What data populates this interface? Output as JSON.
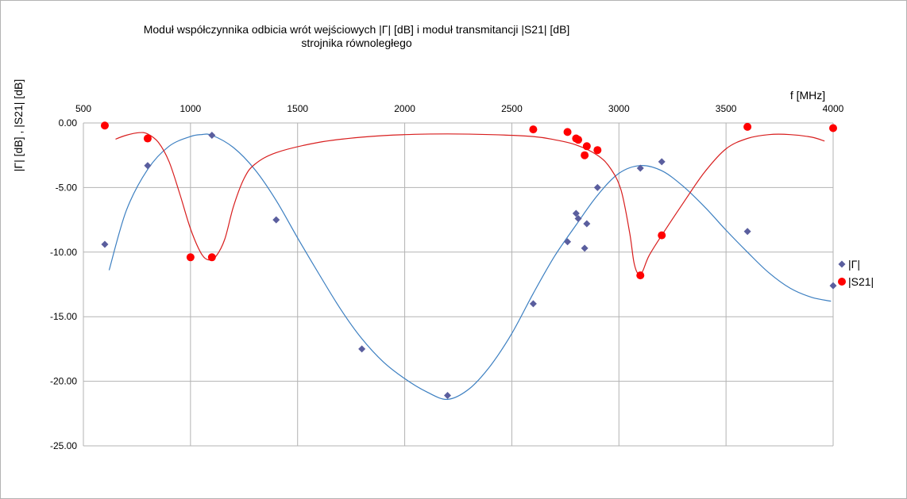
{
  "chart_data": {
    "type": "scatter",
    "title_lines": [
      "Moduł współczynnika odbicia wrót wejściowych |Γ| [dB] i moduł transmitancji   |S21| [dB]",
      "strojnika równoległego"
    ],
    "xlabel": "f [MHz]",
    "ylabel": "|Γ| [dB] , |S21| [dB]",
    "xlim": [
      500,
      4000
    ],
    "ylim": [
      -25,
      0
    ],
    "x_ticks": [
      {
        "value": 500,
        "label": "500"
      },
      {
        "value": 1000,
        "label": "1000"
      },
      {
        "value": 1500,
        "label": "1500"
      },
      {
        "value": 2000,
        "label": "2000"
      },
      {
        "value": 2500,
        "label": "2500"
      },
      {
        "value": 3000,
        "label": "3000"
      },
      {
        "value": 3500,
        "label": "3500"
      },
      {
        "value": 4000,
        "label": "4000"
      }
    ],
    "y_ticks": [
      {
        "value": 0,
        "label": "0.00"
      },
      {
        "value": -5,
        "label": "-5.00"
      },
      {
        "value": -10,
        "label": "-10.00"
      },
      {
        "value": -15,
        "label": "-15.00"
      },
      {
        "value": -20,
        "label": "-20.00"
      },
      {
        "value": -25,
        "label": "-25.00"
      }
    ],
    "grid": true,
    "x_axis_position": "top",
    "legend_position": "right",
    "series": [
      {
        "name": "|Γ|",
        "color": "#5a5e9e",
        "line_color": "#3c7fc1",
        "marker": "diamond",
        "points": [
          {
            "x": 600,
            "y": -9.4
          },
          {
            "x": 800,
            "y": -3.3
          },
          {
            "x": 1100,
            "y": -0.95
          },
          {
            "x": 1400,
            "y": -7.5
          },
          {
            "x": 1800,
            "y": -17.5
          },
          {
            "x": 2200,
            "y": -21.1
          },
          {
            "x": 2600,
            "y": -14.0
          },
          {
            "x": 2760,
            "y": -9.2
          },
          {
            "x": 2800,
            "y": -7.0
          },
          {
            "x": 2810,
            "y": -7.4
          },
          {
            "x": 2840,
            "y": -9.7
          },
          {
            "x": 2850,
            "y": -7.8
          },
          {
            "x": 2900,
            "y": -5.0
          },
          {
            "x": 3100,
            "y": -3.5
          },
          {
            "x": 3200,
            "y": -3.0
          },
          {
            "x": 3600,
            "y": -8.4
          },
          {
            "x": 4000,
            "y": -12.6
          }
        ],
        "trend": [
          {
            "x": 620,
            "y": -11.4
          },
          {
            "x": 700,
            "y": -6.8
          },
          {
            "x": 800,
            "y": -3.6
          },
          {
            "x": 900,
            "y": -1.8
          },
          {
            "x": 1000,
            "y": -1.05
          },
          {
            "x": 1050,
            "y": -0.9
          },
          {
            "x": 1100,
            "y": -0.95
          },
          {
            "x": 1200,
            "y": -1.9
          },
          {
            "x": 1300,
            "y": -3.6
          },
          {
            "x": 1400,
            "y": -6.0
          },
          {
            "x": 1500,
            "y": -8.9
          },
          {
            "x": 1600,
            "y": -11.7
          },
          {
            "x": 1700,
            "y": -14.4
          },
          {
            "x": 1800,
            "y": -16.7
          },
          {
            "x": 1900,
            "y": -18.5
          },
          {
            "x": 2000,
            "y": -19.8
          },
          {
            "x": 2100,
            "y": -20.8
          },
          {
            "x": 2200,
            "y": -21.4
          },
          {
            "x": 2300,
            "y": -20.6
          },
          {
            "x": 2400,
            "y": -18.8
          },
          {
            "x": 2500,
            "y": -16.3
          },
          {
            "x": 2600,
            "y": -13.2
          },
          {
            "x": 2700,
            "y": -10.3
          },
          {
            "x": 2800,
            "y": -7.9
          },
          {
            "x": 2900,
            "y": -5.6
          },
          {
            "x": 3000,
            "y": -3.9
          },
          {
            "x": 3100,
            "y": -3.3
          },
          {
            "x": 3200,
            "y": -3.7
          },
          {
            "x": 3300,
            "y": -4.9
          },
          {
            "x": 3400,
            "y": -6.5
          },
          {
            "x": 3500,
            "y": -8.3
          },
          {
            "x": 3600,
            "y": -10.0
          },
          {
            "x": 3700,
            "y": -11.6
          },
          {
            "x": 3800,
            "y": -12.8
          },
          {
            "x": 3900,
            "y": -13.5
          },
          {
            "x": 3990,
            "y": -13.8
          }
        ]
      },
      {
        "name": "|S21|",
        "color": "#ff0000",
        "line_color": "#d81e1e",
        "marker": "circle",
        "points": [
          {
            "x": 600,
            "y": -0.2
          },
          {
            "x": 800,
            "y": -1.2
          },
          {
            "x": 1000,
            "y": -10.4
          },
          {
            "x": 1100,
            "y": -10.4
          },
          {
            "x": 2600,
            "y": -0.5
          },
          {
            "x": 2760,
            "y": -0.7
          },
          {
            "x": 2800,
            "y": -1.2
          },
          {
            "x": 2810,
            "y": -1.3
          },
          {
            "x": 2840,
            "y": -2.5
          },
          {
            "x": 2850,
            "y": -1.8
          },
          {
            "x": 2900,
            "y": -2.1
          },
          {
            "x": 3100,
            "y": -11.8
          },
          {
            "x": 3200,
            "y": -8.7
          },
          {
            "x": 3600,
            "y": -0.3
          },
          {
            "x": 4000,
            "y": -0.4
          }
        ],
        "trend": [
          {
            "x": 650,
            "y": -1.25
          },
          {
            "x": 700,
            "y": -0.95
          },
          {
            "x": 760,
            "y": -0.75
          },
          {
            "x": 800,
            "y": -0.85
          },
          {
            "x": 850,
            "y": -1.5
          },
          {
            "x": 900,
            "y": -3.0
          },
          {
            "x": 950,
            "y": -5.5
          },
          {
            "x": 1000,
            "y": -8.2
          },
          {
            "x": 1050,
            "y": -10.1
          },
          {
            "x": 1085,
            "y": -10.6
          },
          {
            "x": 1120,
            "y": -10.3
          },
          {
            "x": 1160,
            "y": -9.0
          },
          {
            "x": 1200,
            "y": -6.5
          },
          {
            "x": 1250,
            "y": -4.3
          },
          {
            "x": 1300,
            "y": -3.2
          },
          {
            "x": 1400,
            "y": -2.3
          },
          {
            "x": 1600,
            "y": -1.5
          },
          {
            "x": 1800,
            "y": -1.1
          },
          {
            "x": 2000,
            "y": -0.9
          },
          {
            "x": 2200,
            "y": -0.85
          },
          {
            "x": 2400,
            "y": -0.9
          },
          {
            "x": 2600,
            "y": -1.05
          },
          {
            "x": 2700,
            "y": -1.3
          },
          {
            "x": 2800,
            "y": -1.7
          },
          {
            "x": 2900,
            "y": -2.5
          },
          {
            "x": 2960,
            "y": -3.5
          },
          {
            "x": 3010,
            "y": -5.2
          },
          {
            "x": 3050,
            "y": -8.5
          },
          {
            "x": 3070,
            "y": -10.8
          },
          {
            "x": 3090,
            "y": -11.7
          },
          {
            "x": 3110,
            "y": -11.5
          },
          {
            "x": 3140,
            "y": -10.3
          },
          {
            "x": 3200,
            "y": -8.7
          },
          {
            "x": 3300,
            "y": -6.2
          },
          {
            "x": 3400,
            "y": -3.8
          },
          {
            "x": 3500,
            "y": -2.0
          },
          {
            "x": 3600,
            "y": -1.2
          },
          {
            "x": 3700,
            "y": -0.9
          },
          {
            "x": 3800,
            "y": -0.9
          },
          {
            "x": 3900,
            "y": -1.1
          },
          {
            "x": 3960,
            "y": -1.4
          }
        ]
      }
    ]
  }
}
